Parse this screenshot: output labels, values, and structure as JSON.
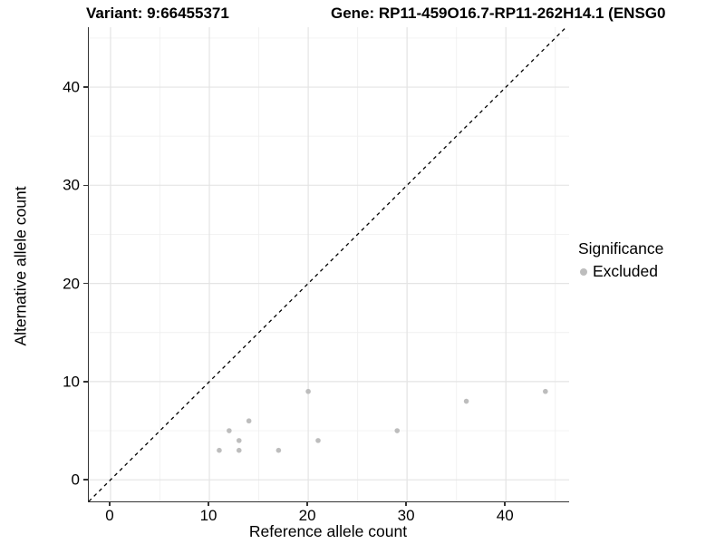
{
  "header": {
    "variant_title": "Variant: 9:66455371",
    "gene_title": "Gene: RP11-459O16.7-RP11-262H14.1 (ENSG0"
  },
  "chart_data": {
    "type": "scatter",
    "title_left": "Variant: 9:66455371",
    "title_right": "Gene: RP11-459O16.7-RP11-262H14.1 (ENSG0",
    "xlabel": "Reference allele count",
    "ylabel": "Alternative allele count",
    "xlim": [
      -2.2,
      46.4
    ],
    "ylim": [
      -2.2,
      46.1
    ],
    "x_tick_values": [
      0,
      10,
      20,
      30,
      40
    ],
    "x_tick_labels": [
      "0",
      "10",
      "20",
      "30",
      "40"
    ],
    "y_tick_values": [
      0,
      10,
      20,
      30,
      40
    ],
    "y_tick_labels": [
      "0",
      "10",
      "20",
      "30",
      "40"
    ],
    "x_minor_ticks": [
      5,
      15,
      25,
      35,
      45
    ],
    "y_minor_ticks": [
      5,
      15,
      25,
      35,
      45
    ],
    "grid": "major and minor gridlines, light grey on white",
    "identity_line": {
      "type": "abline y=x",
      "style": "dashed",
      "color": "#000000"
    },
    "series": [
      {
        "name": "Excluded",
        "color": "#bdbdbd",
        "point_radius": 2.8,
        "points": [
          [
            11,
            3
          ],
          [
            12,
            5
          ],
          [
            13,
            4
          ],
          [
            13,
            3
          ],
          [
            14,
            6
          ],
          [
            17,
            3
          ],
          [
            20,
            9
          ],
          [
            21,
            4
          ],
          [
            29,
            5
          ],
          [
            36,
            8
          ],
          [
            44,
            9
          ]
        ]
      }
    ],
    "legend": {
      "position": "right",
      "title": "Significance",
      "items": [
        {
          "label": "Excluded",
          "color": "#bdbdbd"
        }
      ]
    }
  },
  "colors": {
    "point": "#bdbdbd",
    "major_grid": "#e4e4e4",
    "minor_grid": "#f0f0f0",
    "axis_line": "#333333",
    "identity_line": "#000000",
    "text": "#000000",
    "background": "#ffffff"
  }
}
